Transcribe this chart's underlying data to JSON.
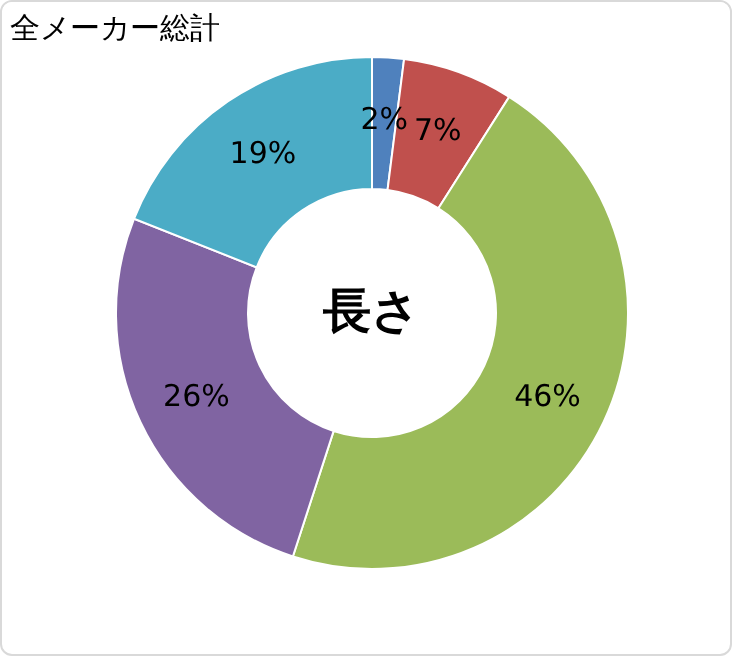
{
  "chart_data": {
    "type": "donut",
    "title": "全メーカー総計",
    "categories": [
      null,
      null,
      null,
      null,
      null
    ],
    "values": [
      2,
      7,
      46,
      26,
      19
    ],
    "value_labels": [
      "2%",
      "7%",
      "46%",
      "26%",
      "19%"
    ],
    "colors": [
      "#4f81bd",
      "#c0504d",
      "#9bbb59",
      "#8064a2",
      "#4bacc6"
    ],
    "annotations": [
      "長さ"
    ],
    "legend": false
  }
}
